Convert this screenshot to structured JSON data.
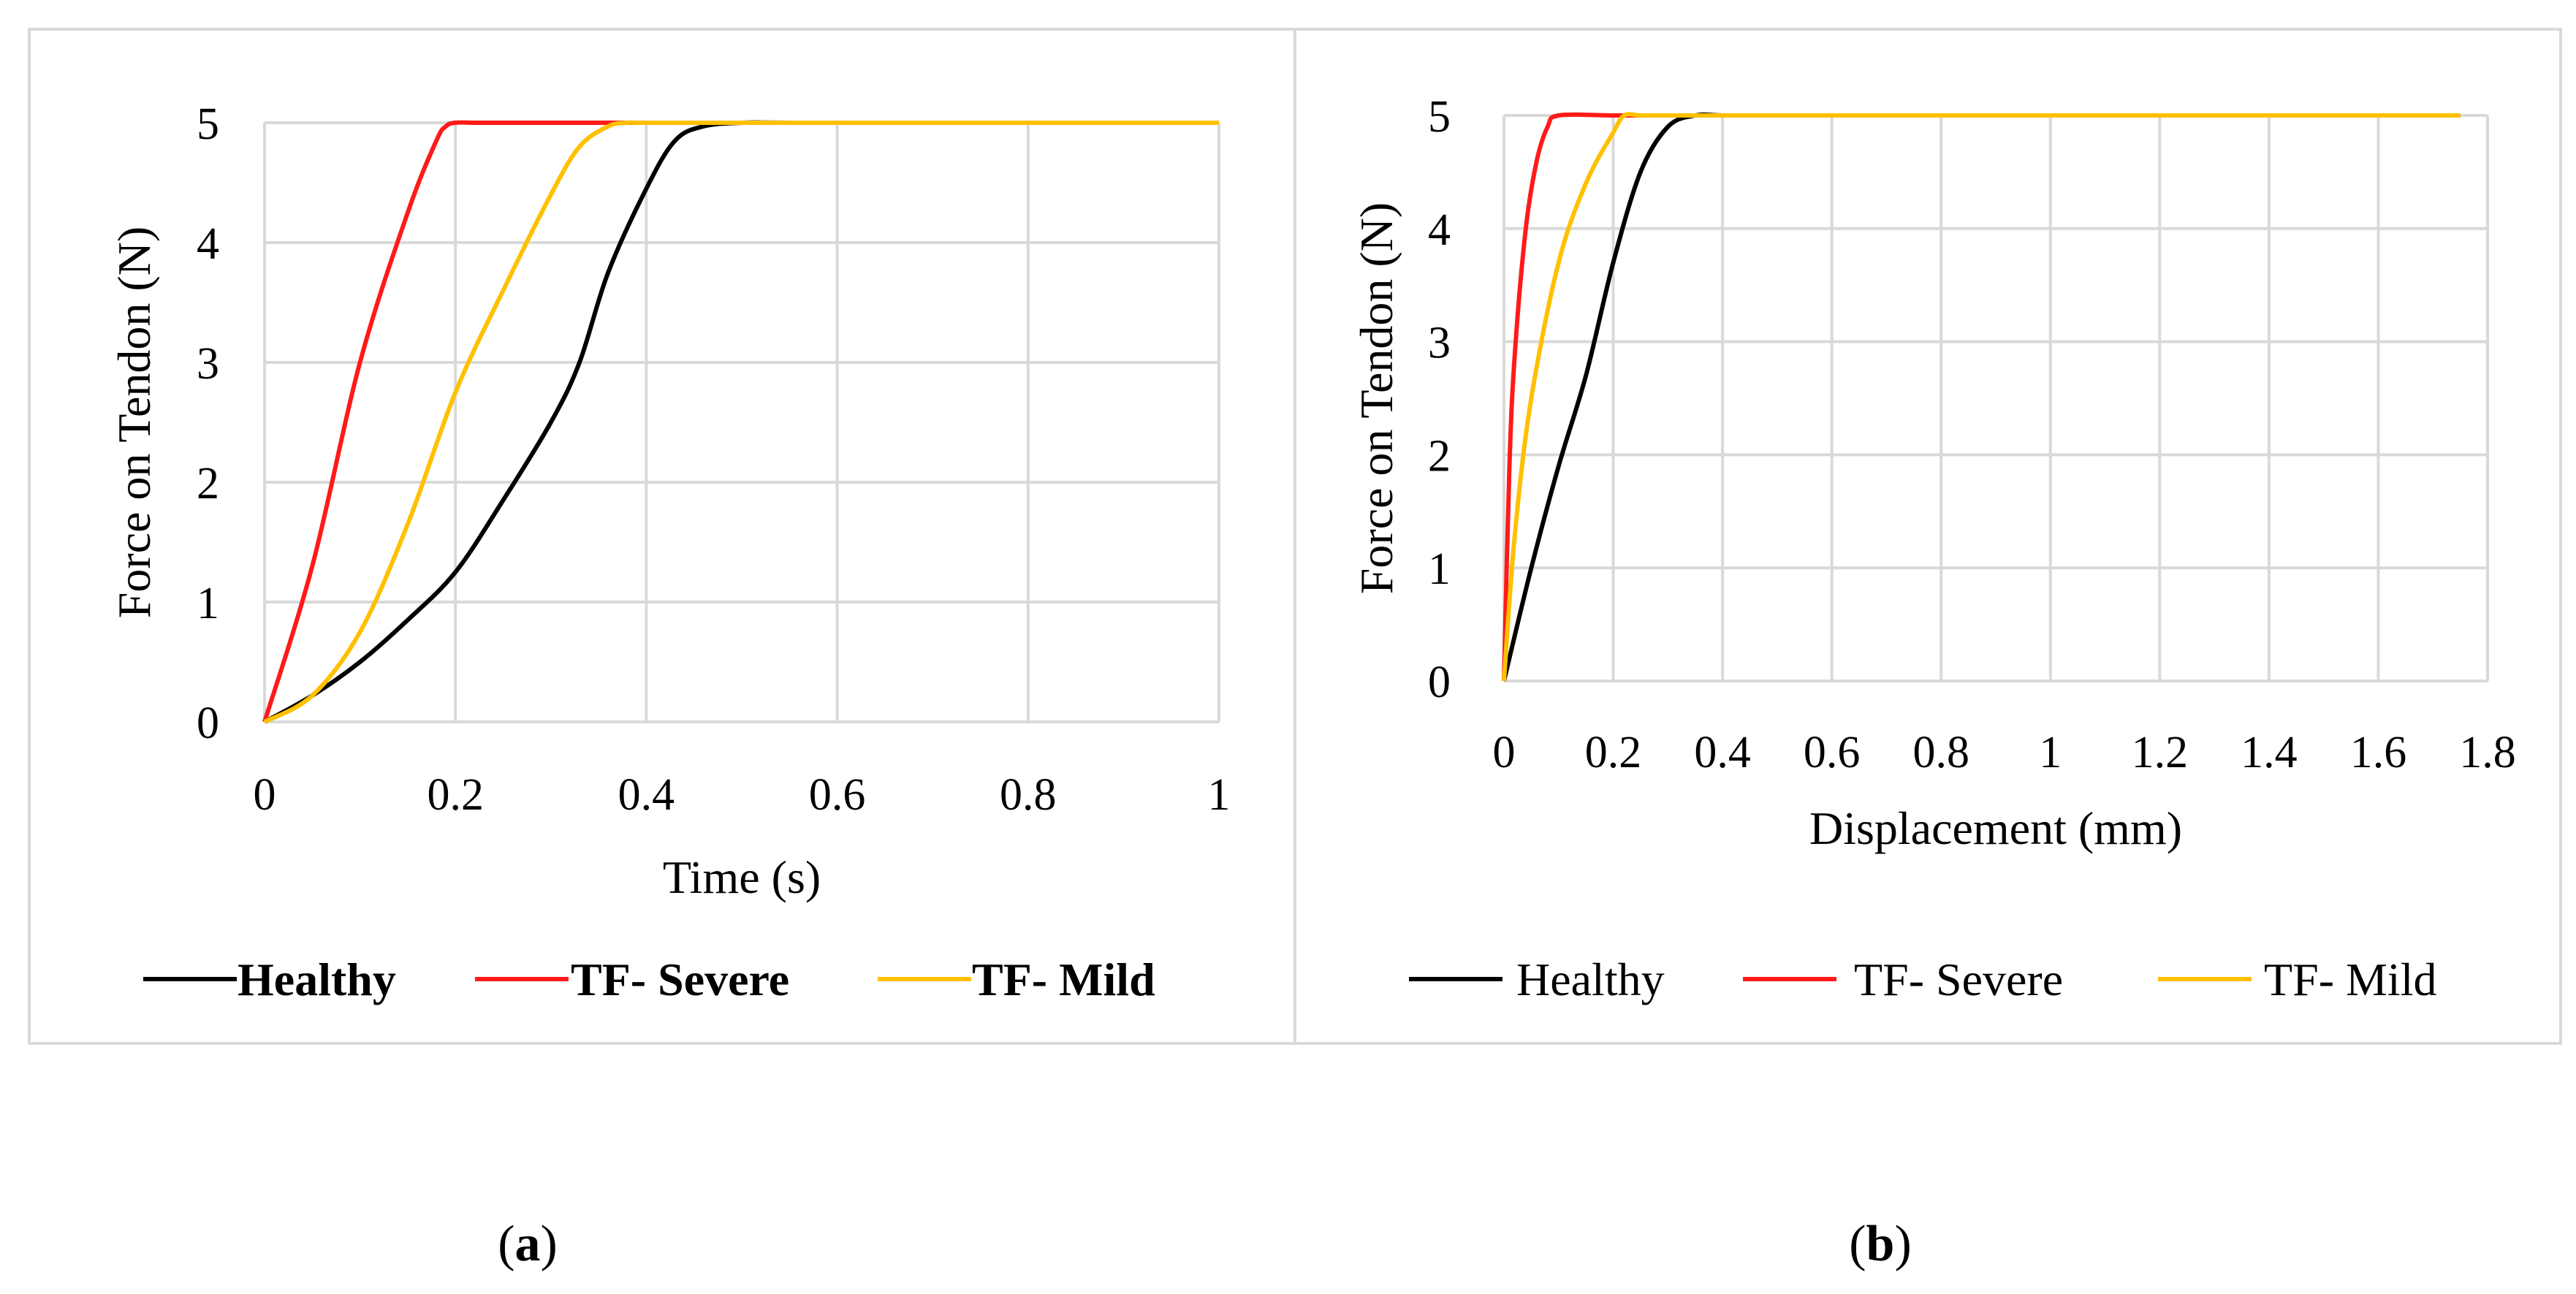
{
  "colors": {
    "healthy": "#000000",
    "severe": "#ff1a1a",
    "mild": "#ffc000",
    "grid": "#d9d9d9",
    "frame": "#d9d9d9"
  },
  "captions": {
    "a_label": "a",
    "b_label": "b",
    "open_paren": "(",
    "close_paren": ")"
  },
  "chart_data": [
    {
      "type": "line",
      "panel": "a",
      "title": "",
      "xlabel": "Time (s)",
      "ylabel": "Force on Tendon (N)",
      "xlim": [
        0,
        1
      ],
      "ylim": [
        0,
        5
      ],
      "x_ticks": [
        0,
        0.2,
        0.4,
        0.6,
        0.8,
        1
      ],
      "x_tick_labels": [
        "0",
        "0.2",
        "0.4",
        "0.6",
        "0.8",
        "1"
      ],
      "y_ticks": [
        0,
        1,
        2,
        3,
        4,
        5
      ],
      "y_tick_labels": [
        "0",
        "1",
        "2",
        "3",
        "4",
        "5"
      ],
      "grid": true,
      "legend_position": "bottom",
      "legend_bold": true,
      "series": [
        {
          "name": "Healthy",
          "color_key": "healthy",
          "x": [
            0,
            0.05,
            0.1,
            0.15,
            0.2,
            0.25,
            0.3,
            0.33,
            0.36,
            0.4,
            0.43,
            0.46,
            0.5,
            0.55,
            0.7,
            1.0
          ],
          "y": [
            0,
            0.22,
            0.5,
            0.85,
            1.25,
            1.85,
            2.5,
            3.0,
            3.75,
            4.45,
            4.85,
            4.97,
            5,
            5,
            5,
            5
          ]
        },
        {
          "name": "TF- Severe",
          "color_key": "severe",
          "x": [
            0,
            0.05,
            0.1,
            0.15,
            0.18,
            0.19,
            0.2,
            0.22,
            0.25,
            0.3,
            0.35,
            0.4,
            0.43
          ],
          "y": [
            0,
            1.3,
            3.0,
            4.25,
            4.85,
            4.97,
            5,
            5,
            5,
            5,
            5,
            5,
            5
          ]
        },
        {
          "name": "TF- Mild",
          "color_key": "mild",
          "x": [
            0,
            0.05,
            0.1,
            0.15,
            0.2,
            0.25,
            0.3,
            0.33,
            0.36,
            0.38,
            0.4,
            0.5,
            0.7,
            1.0
          ],
          "y": [
            0,
            0.22,
            0.75,
            1.65,
            2.75,
            3.6,
            4.4,
            4.8,
            4.97,
            5,
            5,
            5,
            5,
            5
          ]
        }
      ]
    },
    {
      "type": "line",
      "panel": "b",
      "title": "",
      "xlabel": "Displacement (mm)",
      "ylabel": "Force on Tendon (N)",
      "xlim": [
        0,
        1.8
      ],
      "ylim": [
        0,
        5
      ],
      "x_ticks": [
        0,
        0.2,
        0.4,
        0.6,
        0.8,
        1,
        1.2,
        1.4,
        1.6,
        1.8
      ],
      "x_tick_labels": [
        "0",
        "0.2",
        "0.4",
        "0.6",
        "0.8",
        "1",
        "1.2",
        "1.4",
        "1.6",
        "1.8"
      ],
      "y_ticks": [
        0,
        1,
        2,
        3,
        4,
        5
      ],
      "y_tick_labels": [
        "0",
        "1",
        "2",
        "3",
        "4",
        "5"
      ],
      "grid": true,
      "legend_position": "bottom",
      "legend_bold": false,
      "series": [
        {
          "name": "Healthy",
          "color_key": "healthy",
          "x": [
            0,
            0.05,
            0.1,
            0.15,
            0.2,
            0.25,
            0.3,
            0.35,
            0.4,
            0.5,
            1.0,
            1.75
          ],
          "y": [
            0,
            1.0,
            1.9,
            2.7,
            3.7,
            4.5,
            4.9,
            5,
            5,
            5,
            5,
            5
          ]
        },
        {
          "name": "TF- Severe",
          "color_key": "severe",
          "x": [
            0,
            0.01,
            0.02,
            0.04,
            0.06,
            0.08,
            0.1,
            0.2,
            0.3
          ],
          "y": [
            0,
            1.9,
            2.9,
            4.0,
            4.6,
            4.9,
            5,
            5,
            5
          ]
        },
        {
          "name": "TF- Mild",
          "color_key": "mild",
          "x": [
            0,
            0.02,
            0.05,
            0.1,
            0.15,
            0.2,
            0.22,
            0.25,
            0.3,
            0.5,
            1.0,
            1.75
          ],
          "y": [
            0,
            1.3,
            2.5,
            3.7,
            4.4,
            4.85,
            5,
            5,
            5,
            5,
            5,
            5
          ]
        }
      ]
    }
  ]
}
